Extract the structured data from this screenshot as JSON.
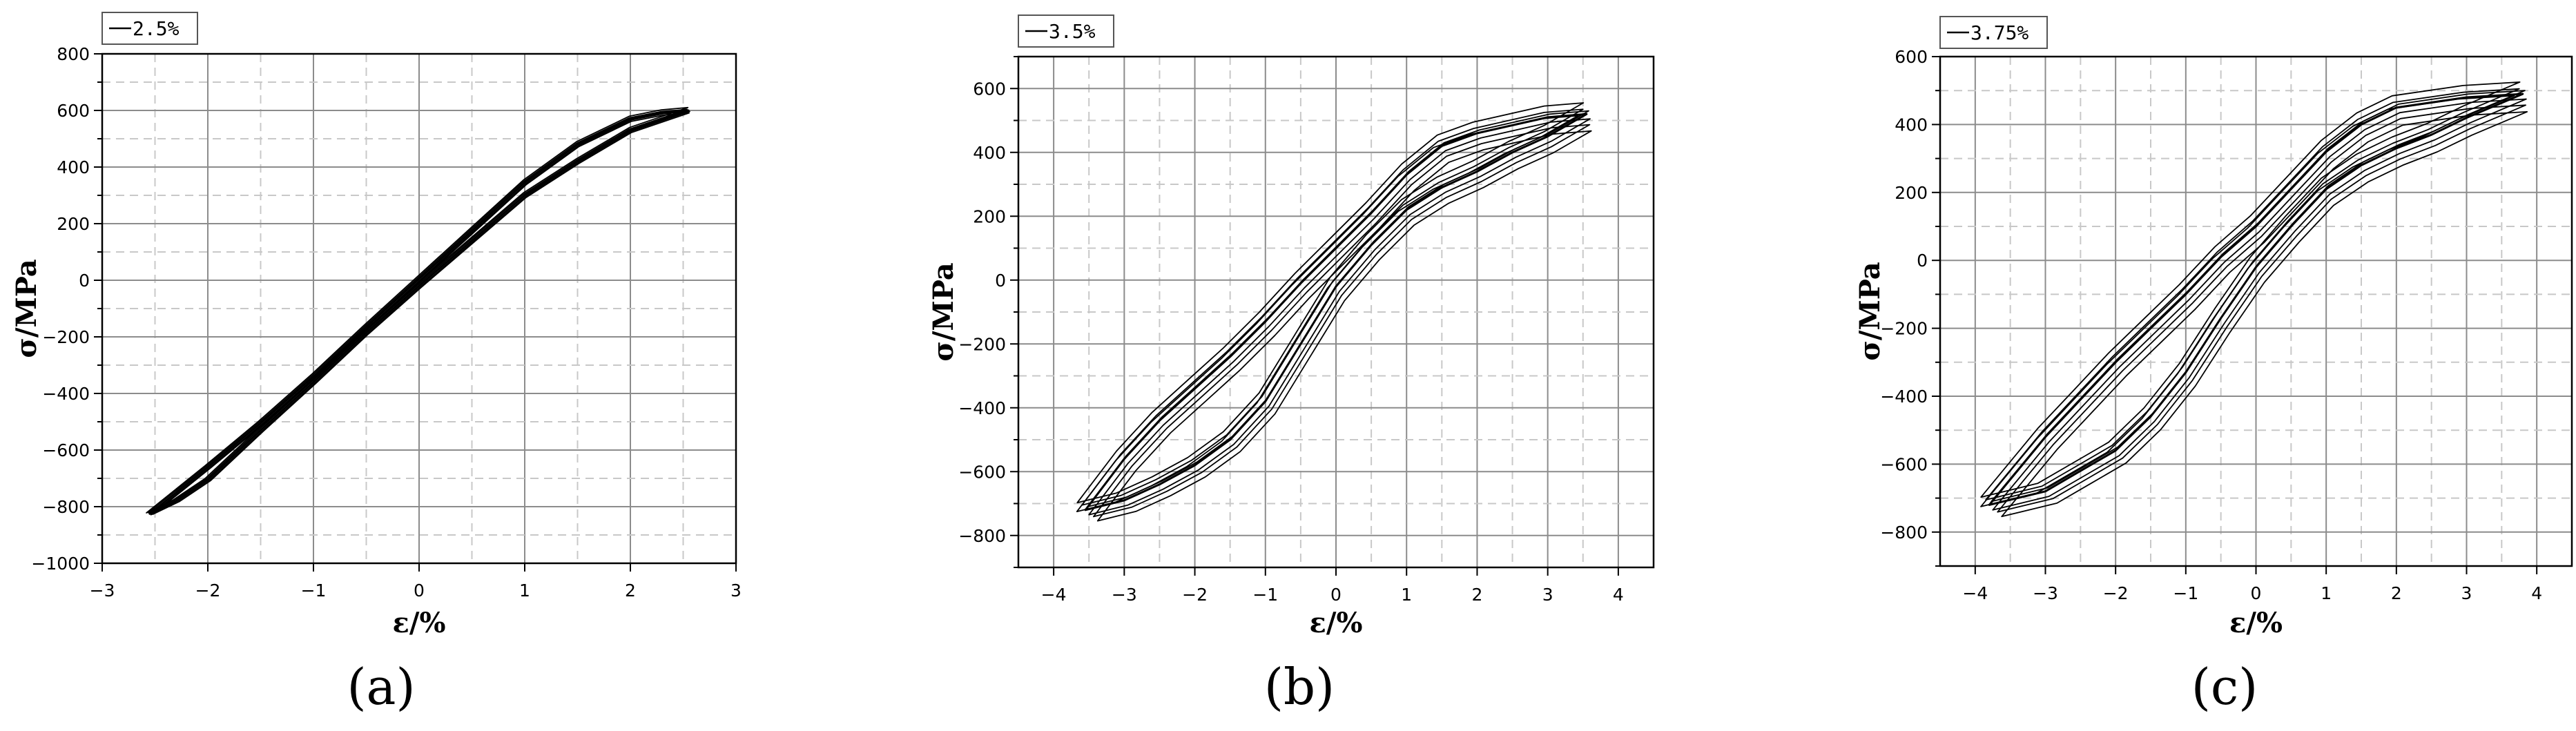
{
  "chart_data": [
    {
      "type": "line",
      "panel_label": "(a)",
      "xlabel": "ε/%",
      "ylabel": "σ/MPa",
      "xlim": [
        -3,
        3
      ],
      "ylim": [
        -1000,
        800
      ],
      "xticks": [
        -3,
        -2,
        -1,
        0,
        1,
        2,
        3
      ],
      "xtick_labels": [
        "−3",
        "−2",
        "−1",
        "0",
        "1",
        "2",
        "3"
      ],
      "yticks": [
        -1000,
        -800,
        -600,
        -400,
        -200,
        0,
        200,
        400,
        600,
        800
      ],
      "ytick_labels": [
        "−1000",
        "−800",
        "−600",
        "−400",
        "−200",
        "0",
        "200",
        "400",
        "600",
        "800"
      ],
      "grid": true,
      "legend_position": "top-left",
      "amplitude": 2.5,
      "series": [
        {
          "name": "2.5%",
          "upper_branch": [
            [
              -2.55,
              -825
            ],
            [
              -2.0,
              -660
            ],
            [
              -1.5,
              -505
            ],
            [
              -1.0,
              -340
            ],
            [
              -0.5,
              -165
            ],
            [
              0,
              5
            ],
            [
              0.5,
              175
            ],
            [
              1.0,
              345
            ],
            [
              1.5,
              480
            ],
            [
              2.0,
              570
            ],
            [
              2.3,
              592
            ],
            [
              2.55,
              600
            ]
          ],
          "lower_branch": [
            [
              2.55,
              600
            ],
            [
              2.0,
              530
            ],
            [
              1.5,
              420
            ],
            [
              1.0,
              300
            ],
            [
              0.5,
              140
            ],
            [
              0,
              -20
            ],
            [
              -0.5,
              -185
            ],
            [
              -1.0,
              -360
            ],
            [
              -1.5,
              -530
            ],
            [
              -2.0,
              -705
            ],
            [
              -2.3,
              -780
            ],
            [
              -2.55,
              -825
            ]
          ]
        }
      ]
    },
    {
      "type": "line",
      "panel_label": "(b)",
      "xlabel": "ε/%",
      "ylabel": "σ/MPa",
      "xlim": [
        -4.5,
        4.5
      ],
      "ylim": [
        -900,
        700
      ],
      "xticks": [
        -4,
        -3,
        -2,
        -1,
        0,
        1,
        2,
        3,
        4
      ],
      "xtick_labels": [
        "−4",
        "−3",
        "−2",
        "−1",
        "0",
        "1",
        "2",
        "3",
        "4"
      ],
      "yticks": [
        -800,
        -600,
        -400,
        -200,
        0,
        200,
        400,
        600
      ],
      "ytick_labels": [
        "−800",
        "−600",
        "−400",
        "−200",
        "0",
        "200",
        "400",
        "600"
      ],
      "grid": true,
      "legend_position": "top-left",
      "amplitude": 3.5,
      "series": [
        {
          "name": "3.5%",
          "upper_branch": [
            [
              -3.55,
              -720
            ],
            [
              -3.0,
              -560
            ],
            [
              -2.5,
              -440
            ],
            [
              -2.0,
              -340
            ],
            [
              -1.5,
              -240
            ],
            [
              -1.0,
              -130
            ],
            [
              -0.5,
              -10
            ],
            [
              0,
              100
            ],
            [
              0.5,
              210
            ],
            [
              1.0,
              330
            ],
            [
              1.5,
              420
            ],
            [
              2.0,
              460
            ],
            [
              3.0,
              510
            ],
            [
              3.55,
              520
            ]
          ],
          "lower_branch": [
            [
              3.55,
              520
            ],
            [
              3.0,
              450
            ],
            [
              2.5,
              400
            ],
            [
              2.0,
              340
            ],
            [
              1.5,
              290
            ],
            [
              1.0,
              220
            ],
            [
              0.5,
              110
            ],
            [
              0,
              -20
            ],
            [
              -0.5,
              -200
            ],
            [
              -1.0,
              -380
            ],
            [
              -1.5,
              -500
            ],
            [
              -2.0,
              -580
            ],
            [
              -2.5,
              -640
            ],
            [
              -3.0,
              -690
            ],
            [
              -3.55,
              -720
            ]
          ]
        }
      ]
    },
    {
      "type": "line",
      "panel_label": "(c)",
      "xlabel": "ε/%",
      "ylabel": "σ/MPa",
      "xlim": [
        -4.5,
        4.5
      ],
      "ylim": [
        -900,
        600
      ],
      "xticks": [
        -4,
        -3,
        -2,
        -1,
        0,
        1,
        2,
        3,
        4
      ],
      "xtick_labels": [
        "−4",
        "−3",
        "−2",
        "−1",
        "0",
        "1",
        "2",
        "3",
        "4"
      ],
      "yticks": [
        -800,
        -600,
        -400,
        -200,
        0,
        200,
        400,
        600
      ],
      "ytick_labels": [
        "−800",
        "−600",
        "−400",
        "−200",
        "0",
        "200",
        "400",
        "600"
      ],
      "grid": true,
      "legend_position": "top-left",
      "amplitude": 3.75,
      "series": [
        {
          "name": "3.75%",
          "upper_branch": [
            [
              -3.8,
              -720
            ],
            [
              -3.0,
              -520
            ],
            [
              -2.5,
              -410
            ],
            [
              -2.0,
              -300
            ],
            [
              -1.5,
              -200
            ],
            [
              -1.0,
              -100
            ],
            [
              -0.5,
              10
            ],
            [
              0,
              100
            ],
            [
              0.5,
              210
            ],
            [
              1.0,
              320
            ],
            [
              1.5,
              400
            ],
            [
              2.0,
              450
            ],
            [
              3.0,
              480
            ],
            [
              3.8,
              490
            ]
          ],
          "lower_branch": [
            [
              3.8,
              490
            ],
            [
              3.0,
              420
            ],
            [
              2.5,
              370
            ],
            [
              2.0,
              330
            ],
            [
              1.5,
              280
            ],
            [
              1.0,
              210
            ],
            [
              0.5,
              100
            ],
            [
              0,
              -20
            ],
            [
              -0.5,
              -170
            ],
            [
              -1.0,
              -330
            ],
            [
              -1.5,
              -460
            ],
            [
              -2.0,
              -560
            ],
            [
              -2.5,
              -620
            ],
            [
              -3.0,
              -680
            ],
            [
              -3.8,
              -720
            ]
          ]
        }
      ]
    }
  ]
}
